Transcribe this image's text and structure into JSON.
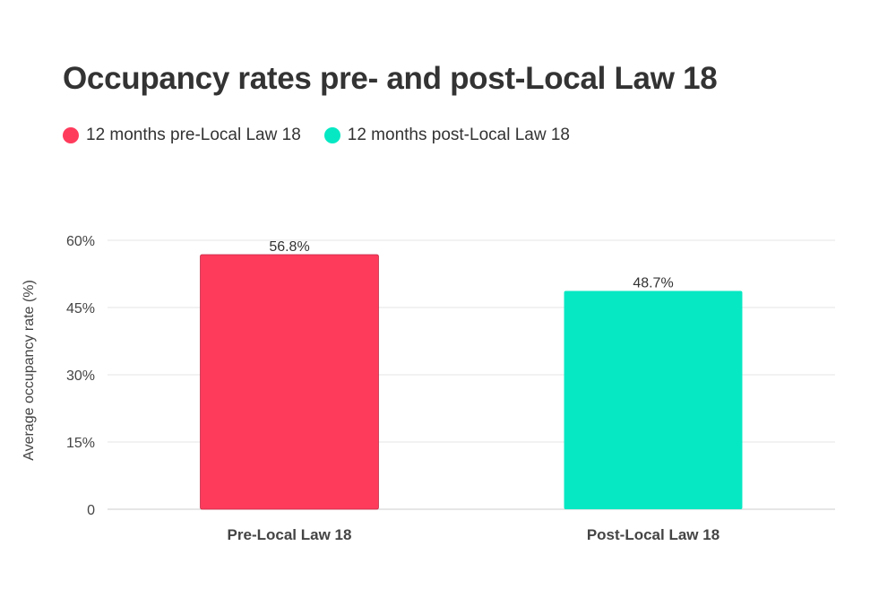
{
  "chart_data": {
    "type": "bar",
    "title": "Occupancy rates pre- and post-Local Law 18",
    "ylabel": "Average occupancy rate (%)",
    "xlabel": "",
    "categories": [
      "Pre-Local Law 18",
      "Post-Local Law 18"
    ],
    "values": [
      56.8,
      48.7
    ],
    "data_labels": [
      "56.8%",
      "48.7%"
    ],
    "colors": [
      "#ff3b5c",
      "#06e8c3"
    ],
    "ylim": [
      0,
      60
    ],
    "yticks": [
      {
        "value": 0,
        "label": "0"
      },
      {
        "value": 15,
        "label": "15%"
      },
      {
        "value": 30,
        "label": "30%"
      },
      {
        "value": 45,
        "label": "45%"
      },
      {
        "value": 60,
        "label": "60%"
      }
    ],
    "grid": true,
    "legend_placement": "top-left",
    "legend": [
      {
        "label": "12 months pre-Local Law 18",
        "color": "#ff3b5c"
      },
      {
        "label": "12 months post-Local Law 18",
        "color": "#06e8c3"
      }
    ]
  }
}
